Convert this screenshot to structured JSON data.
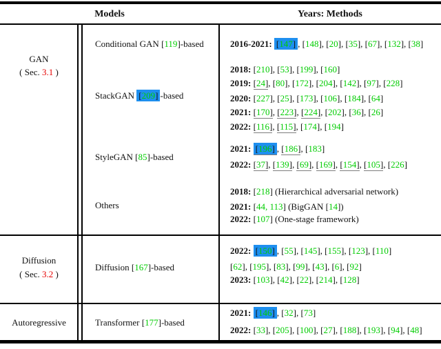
{
  "header": {
    "models": "Models",
    "years_methods": "Years: Methods"
  },
  "colors": {
    "cite_green": "#00CC00",
    "highlight_blue": "#1E8FEF",
    "section_red": "#E60000",
    "underline_gray": "#7d7d7d",
    "rule_black": "#000000",
    "ink": "#111111"
  },
  "sections": [
    {
      "id": "gan",
      "category_lines": [
        [
          [
            "t",
            "GAN"
          ]
        ],
        [
          [
            "t",
            "( Sec. "
          ],
          [
            "r",
            "3.1"
          ],
          [
            "t",
            " )"
          ]
        ]
      ],
      "rows": [
        {
          "model": [
            [
              "t",
              "Conditional GAN "
            ],
            [
              "c",
              "119"
            ],
            [
              "t",
              "-based"
            ]
          ],
          "lines": [
            [
              [
                "y",
                "2016-2021:"
              ],
              [
                "ch",
                "147"
              ],
              [
                "c",
                "148"
              ],
              [
                "c",
                "20"
              ],
              [
                "c",
                "35"
              ],
              [
                "c",
                "67"
              ],
              [
                "c",
                "132"
              ],
              [
                "c",
                "38"
              ]
            ]
          ]
        },
        {
          "model": [
            [
              "t",
              "StackGAN "
            ],
            [
              "ch",
              "209"
            ],
            [
              "t",
              "-based"
            ]
          ],
          "lines": [
            [
              [
                "y",
                "2018:"
              ],
              [
                "c",
                "210"
              ],
              [
                "c",
                "53"
              ],
              [
                "c",
                "199"
              ],
              [
                "c",
                "160"
              ]
            ],
            [
              [
                "y",
                "2019:"
              ],
              [
                "cu",
                "24"
              ],
              [
                "c",
                "80"
              ],
              [
                "c",
                "172"
              ],
              [
                "c",
                "204"
              ],
              [
                "c",
                "142"
              ],
              [
                "c",
                "97"
              ],
              [
                "c",
                "228"
              ]
            ],
            [
              [
                "y",
                "2020:"
              ],
              [
                "c",
                "227"
              ],
              [
                "c",
                "25"
              ],
              [
                "c",
                "173"
              ],
              [
                "c",
                "106"
              ],
              [
                "c",
                "184"
              ],
              [
                "c",
                "64"
              ]
            ],
            [
              [
                "y",
                "2021:"
              ],
              [
                "cu",
                "170"
              ],
              [
                "cu",
                "223"
              ],
              [
                "cu",
                "224"
              ],
              [
                "c",
                "202"
              ],
              [
                "c",
                "36"
              ],
              [
                "c",
                "26"
              ]
            ],
            [
              [
                "y",
                "2022:"
              ],
              [
                "cu",
                "116"
              ],
              [
                "cu",
                "115"
              ],
              [
                "c",
                "174"
              ],
              [
                "c",
                "194"
              ]
            ]
          ]
        },
        {
          "model": [
            [
              "t",
              "StyleGAN "
            ],
            [
              "c",
              "85"
            ],
            [
              "t",
              "-based"
            ]
          ],
          "lines": [
            [
              [
                "y",
                "2021:"
              ],
              [
                "chu",
                "196"
              ],
              [
                "cu",
                "186"
              ],
              [
                "c",
                "183"
              ]
            ],
            [
              [
                "y",
                "2022:"
              ],
              [
                "cu",
                "37"
              ],
              [
                "cu",
                "139"
              ],
              [
                "cu",
                "69"
              ],
              [
                "cu",
                "169"
              ],
              [
                "cu",
                "154"
              ],
              [
                "cu",
                "105"
              ],
              [
                "c",
                "226"
              ]
            ]
          ]
        },
        {
          "model": [
            [
              "t",
              "Others"
            ]
          ],
          "lines": [
            [
              [
                "y",
                "2018:"
              ],
              [
                "c",
                "218"
              ],
              [
                "t",
                " (Hierarchical adversarial network)"
              ]
            ],
            [
              [
                "y",
                "2021:"
              ],
              [
                "c",
                "44, 113"
              ],
              [
                "t",
                " (BigGAN "
              ],
              [
                "c",
                "14"
              ],
              [
                "t",
                ")"
              ]
            ],
            [
              [
                "y",
                "2022:"
              ],
              [
                "c",
                "107"
              ],
              [
                "t",
                " (One-stage framework)"
              ]
            ]
          ]
        }
      ]
    },
    {
      "id": "diffusion",
      "category_lines": [
        [
          [
            "t",
            "Diffusion"
          ]
        ],
        [
          [
            "t",
            "( Sec. "
          ],
          [
            "r",
            "3.2"
          ],
          [
            "t",
            " )"
          ]
        ]
      ],
      "rows": [
        {
          "model": [
            [
              "t",
              "Diffusion "
            ],
            [
              "c",
              "167"
            ],
            [
              "t",
              "-based"
            ]
          ],
          "lines": [
            [
              [
                "y",
                "2022:"
              ],
              [
                "ch",
                "150"
              ],
              [
                "c",
                "55"
              ],
              [
                "c",
                "145"
              ],
              [
                "c",
                "155"
              ],
              [
                "c",
                "123"
              ],
              [
                "c",
                "110"
              ]
            ],
            [
              [
                "c",
                "62"
              ],
              [
                "c",
                "195"
              ],
              [
                "c",
                "83"
              ],
              [
                "c",
                "99"
              ],
              [
                "c",
                "43"
              ],
              [
                "c",
                "6"
              ],
              [
                "c",
                "92"
              ]
            ],
            [
              [
                "y",
                "2023:"
              ],
              [
                "c",
                "103"
              ],
              [
                "c",
                "42"
              ],
              [
                "c",
                "22"
              ],
              [
                "c",
                "214"
              ],
              [
                "c",
                "128"
              ]
            ]
          ]
        }
      ]
    },
    {
      "id": "autoregressive",
      "category_lines": [
        [
          [
            "t",
            "Autoregressive"
          ]
        ]
      ],
      "rows": [
        {
          "model": [
            [
              "t",
              "Transformer "
            ],
            [
              "c",
              "177"
            ],
            [
              "t",
              "-based"
            ]
          ],
          "lines": [
            [
              [
                "y",
                "2021:"
              ],
              [
                "ch",
                "146"
              ],
              [
                "c",
                "32"
              ],
              [
                "c",
                "73"
              ]
            ],
            [
              [
                "y",
                "2022:"
              ],
              [
                "c",
                "33"
              ],
              [
                "c",
                "205"
              ],
              [
                "c",
                "100"
              ],
              [
                "c",
                "27"
              ],
              [
                "c",
                "188"
              ],
              [
                "c",
                "193"
              ],
              [
                "c",
                "94"
              ],
              [
                "c",
                "48"
              ]
            ]
          ]
        }
      ]
    }
  ]
}
